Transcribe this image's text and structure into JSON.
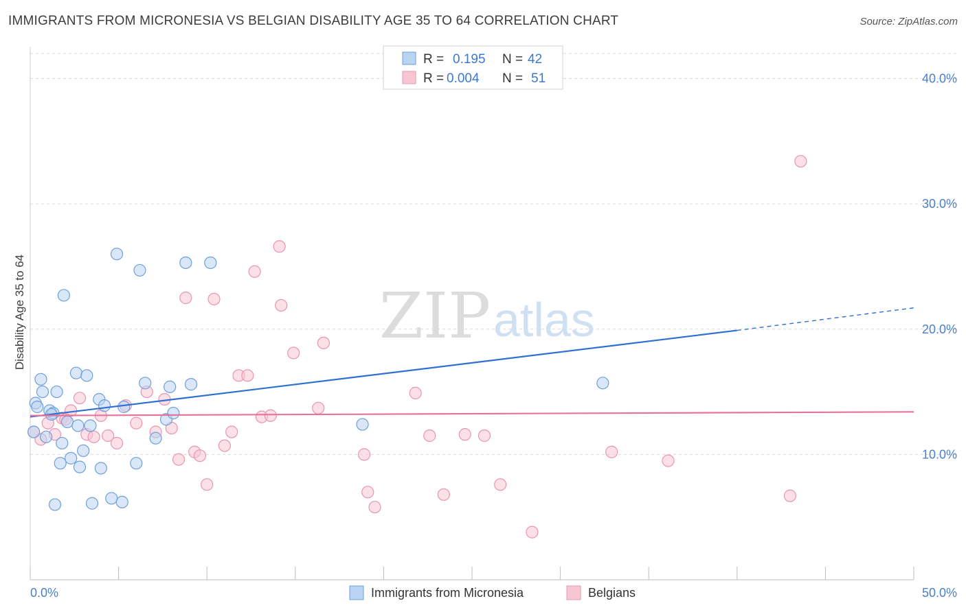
{
  "title": "IMMIGRANTS FROM MICRONESIA VS BELGIAN DISABILITY AGE 35 TO 64 CORRELATION CHART",
  "source": "Source: ZipAtlas.com",
  "watermark": {
    "zip": "ZIP",
    "atlas": "atlas"
  },
  "colors": {
    "blue_fill": "#b9d3f2",
    "blue_stroke": "#6f9fd9",
    "blue_line": "#2f6fd0",
    "pink_fill": "#f7c6d5",
    "pink_stroke": "#e895b0",
    "pink_line": "#e8739a",
    "grid": "#d9d9d9",
    "tick_text": "#4a7fc9"
  },
  "legend": {
    "rows": [
      {
        "r_label": "R =",
        "r_value": "0.195",
        "n_label": "N =",
        "n_value": "42"
      },
      {
        "r_label": "R =",
        "r_value": "0.004",
        "n_label": "N =",
        "n_value": "51"
      }
    ]
  },
  "chart_data": {
    "type": "scatter",
    "title": "IMMIGRANTS FROM MICRONESIA VS BELGIAN DISABILITY AGE 35 TO 64 CORRELATION CHART",
    "xlabel": "",
    "ylabel": "Disability Age 35 to 64",
    "xlim": [
      0,
      50
    ],
    "ylim": [
      0,
      42
    ],
    "x_tick_labels": [
      "0.0%",
      "50.0%"
    ],
    "y_ticks": [
      10,
      20,
      30,
      40
    ],
    "y_tick_labels": [
      "10.0%",
      "20.0%",
      "30.0%",
      "40.0%"
    ],
    "grid": "horizontal dashed",
    "legend_position": "top-center",
    "series": [
      {
        "name": "Immigrants from Micronesia",
        "color": "blue",
        "points": [
          [
            0.2,
            11.8
          ],
          [
            0.3,
            14.1
          ],
          [
            0.4,
            13.8
          ],
          [
            0.6,
            16.0
          ],
          [
            0.7,
            15.0
          ],
          [
            0.9,
            11.4
          ],
          [
            1.1,
            13.5
          ],
          [
            1.3,
            13.3
          ],
          [
            1.5,
            15.0
          ],
          [
            1.7,
            9.3
          ],
          [
            1.8,
            10.9
          ],
          [
            1.9,
            22.7
          ],
          [
            2.1,
            12.6
          ],
          [
            2.3,
            9.7
          ],
          [
            2.6,
            16.5
          ],
          [
            2.7,
            12.3
          ],
          [
            2.8,
            9.0
          ],
          [
            3.0,
            10.3
          ],
          [
            3.2,
            16.3
          ],
          [
            3.4,
            12.3
          ],
          [
            3.5,
            6.1
          ],
          [
            3.9,
            14.4
          ],
          [
            4.0,
            8.9
          ],
          [
            4.2,
            13.9
          ],
          [
            4.6,
            6.5
          ],
          [
            4.9,
            26.0
          ],
          [
            5.2,
            6.2
          ],
          [
            5.3,
            13.8
          ],
          [
            6.0,
            9.3
          ],
          [
            6.2,
            24.7
          ],
          [
            6.5,
            15.7
          ],
          [
            7.1,
            11.3
          ],
          [
            7.7,
            12.8
          ],
          [
            7.9,
            15.4
          ],
          [
            8.1,
            13.3
          ],
          [
            8.8,
            25.3
          ],
          [
            9.1,
            15.6
          ],
          [
            10.2,
            25.3
          ],
          [
            18.8,
            12.4
          ],
          [
            32.4,
            15.7
          ],
          [
            1.4,
            6.0
          ],
          [
            1.2,
            13.2
          ]
        ],
        "trendline": {
          "x": [
            0,
            40
          ],
          "y": [
            13.0,
            19.9
          ],
          "dashed_extension_to": [
            50,
            21.7
          ]
        }
      },
      {
        "name": "Belgians",
        "color": "pink",
        "points": [
          [
            0.2,
            11.8
          ],
          [
            0.6,
            11.2
          ],
          [
            1.0,
            12.5
          ],
          [
            1.4,
            11.6
          ],
          [
            1.8,
            12.9
          ],
          [
            2.3,
            13.5
          ],
          [
            2.8,
            14.5
          ],
          [
            3.2,
            11.6
          ],
          [
            3.6,
            11.4
          ],
          [
            4.0,
            13.1
          ],
          [
            4.4,
            11.5
          ],
          [
            4.9,
            10.9
          ],
          [
            5.4,
            13.9
          ],
          [
            6.0,
            12.5
          ],
          [
            6.6,
            15.0
          ],
          [
            7.1,
            11.8
          ],
          [
            7.6,
            14.4
          ],
          [
            8.0,
            12.1
          ],
          [
            8.4,
            9.6
          ],
          [
            8.8,
            22.5
          ],
          [
            9.3,
            10.2
          ],
          [
            9.6,
            9.9
          ],
          [
            10.0,
            7.6
          ],
          [
            10.4,
            22.4
          ],
          [
            11.0,
            10.7
          ],
          [
            11.4,
            11.8
          ],
          [
            11.8,
            16.3
          ],
          [
            12.3,
            16.3
          ],
          [
            12.7,
            24.6
          ],
          [
            13.1,
            13.0
          ],
          [
            13.6,
            13.1
          ],
          [
            14.1,
            26.6
          ],
          [
            14.2,
            21.9
          ],
          [
            14.9,
            18.1
          ],
          [
            16.3,
            13.7
          ],
          [
            16.6,
            18.9
          ],
          [
            18.9,
            10.0
          ],
          [
            19.1,
            7.0
          ],
          [
            19.5,
            5.8
          ],
          [
            21.8,
            14.9
          ],
          [
            22.6,
            11.5
          ],
          [
            23.4,
            6.8
          ],
          [
            24.6,
            11.6
          ],
          [
            25.7,
            11.5
          ],
          [
            26.6,
            7.6
          ],
          [
            28.4,
            3.8
          ],
          [
            32.9,
            10.2
          ],
          [
            36.1,
            9.5
          ],
          [
            43.0,
            6.7
          ],
          [
            43.6,
            33.4
          ],
          [
            2.0,
            12.8
          ]
        ],
        "trendline": {
          "x": [
            0,
            50
          ],
          "y": [
            13.1,
            13.4
          ]
        }
      }
    ]
  },
  "bottom_legend": [
    {
      "label": "Immigrants from Micronesia"
    },
    {
      "label": "Belgians"
    }
  ]
}
